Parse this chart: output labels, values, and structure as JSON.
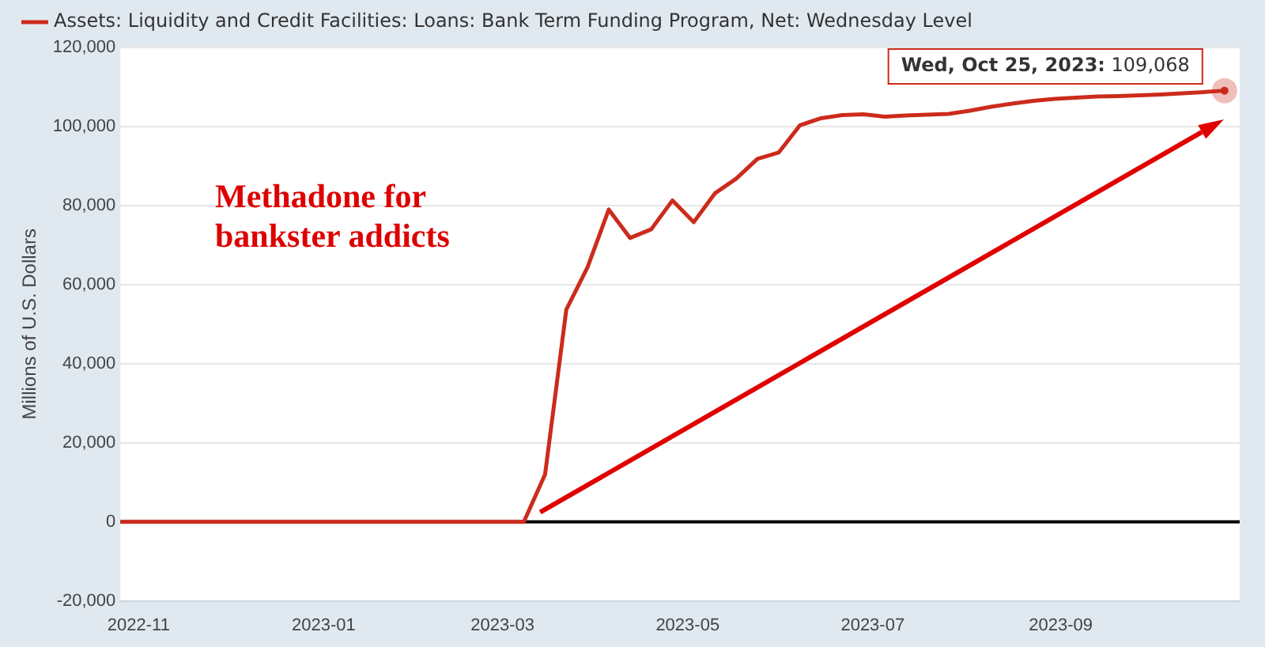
{
  "chart_data": {
    "type": "line",
    "ylabel": "Millions of U.S. Dollars",
    "x": [
      "2022-10-26",
      "2023-03-08",
      "2023-03-15",
      "2023-03-22",
      "2023-03-29",
      "2023-04-05",
      "2023-04-12",
      "2023-04-19",
      "2023-04-26",
      "2023-05-03",
      "2023-05-10",
      "2023-05-17",
      "2023-05-24",
      "2023-05-31",
      "2023-06-07",
      "2023-06-14",
      "2023-06-21",
      "2023-06-28",
      "2023-07-05",
      "2023-07-12",
      "2023-07-19",
      "2023-07-26",
      "2023-08-02",
      "2023-08-09",
      "2023-08-16",
      "2023-08-23",
      "2023-08-30",
      "2023-09-06",
      "2023-09-13",
      "2023-09-20",
      "2023-09-27",
      "2023-10-04",
      "2023-10-11",
      "2023-10-18",
      "2023-10-25"
    ],
    "series": [
      {
        "name": "Assets: Liquidity and Credit Facilities: Loans: Bank Term Funding Program, Net: Wednesday Level",
        "color": "#cc2b1c",
        "values": [
          0,
          0,
          12000,
          53700,
          64400,
          79000,
          71800,
          74000,
          81300,
          75800,
          83100,
          86800,
          91800,
          93400,
          100300,
          102100,
          102900,
          103100,
          102500,
          102800,
          103000,
          103200,
          104000,
          105000,
          105800,
          106500,
          107000,
          107300,
          107600,
          107700,
          107900,
          108100,
          108400,
          108700,
          109068
        ]
      }
    ],
    "xlim": [
      "2022-10-26",
      "2023-10-30"
    ],
    "xticks": [
      "2022-11",
      "2023-01",
      "2023-03",
      "2023-05",
      "2023-07",
      "2023-09"
    ],
    "ylim": [
      -20000,
      120000
    ],
    "yticks": [
      {
        "value": -20000,
        "label": "-20,000"
      },
      0,
      {
        "value": 20000,
        "label": "20,000"
      },
      {
        "value": 40000,
        "label": "40,000"
      },
      {
        "value": 60000,
        "label": "60,000"
      },
      {
        "value": 80000,
        "label": "80,000"
      },
      {
        "value": 100000,
        "label": "100,000"
      },
      {
        "value": 120000,
        "label": "120,000"
      }
    ],
    "ref_lines": [
      {
        "axis": "y",
        "value": 0,
        "color": "#000000"
      }
    ],
    "grid": "y",
    "legend": "top left",
    "marker": "none",
    "line_style": "solid",
    "annotations": [
      "Methadone for bankster addicts",
      {
        "text": "Wed, Oct 25, 2023: 109,068",
        "x": "2023-10-25",
        "y": 109068
      }
    ]
  }
}
